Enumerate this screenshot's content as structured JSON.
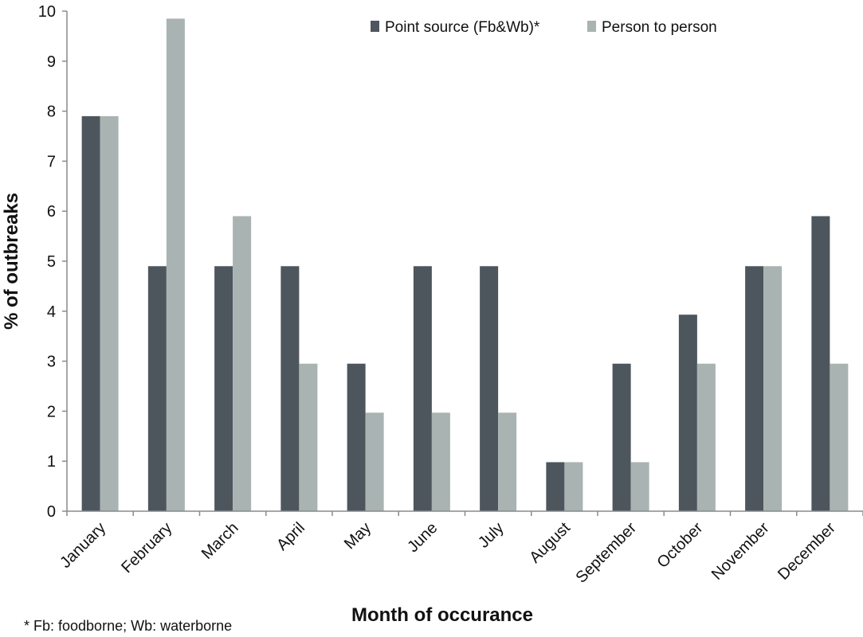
{
  "chart_data": {
    "type": "bar",
    "title": "",
    "xlabel": "Month of occurance",
    "ylabel": "% of outbreaks",
    "ylim": [
      0,
      10
    ],
    "yticks": [
      "0",
      "1",
      "2",
      "3",
      "4",
      "5",
      "6",
      "7",
      "8",
      "9",
      "10"
    ],
    "grid": false,
    "legend_position": "top-right",
    "categories": [
      "January",
      "February",
      "March",
      "April",
      "May",
      "June",
      "July",
      "August",
      "September",
      "October",
      "November",
      "December"
    ],
    "series": [
      {
        "name": "Point source (Fb&Wb)*",
        "color": "#4d565d",
        "values": [
          7.9,
          4.9,
          4.9,
          4.9,
          2.95,
          4.9,
          4.9,
          0.98,
          2.95,
          3.93,
          4.9,
          5.9
        ]
      },
      {
        "name": "Person to person",
        "color": "#a8b3b2",
        "values": [
          7.9,
          9.85,
          5.9,
          2.95,
          1.97,
          1.97,
          1.97,
          0.98,
          0.98,
          2.95,
          4.9,
          2.95
        ]
      }
    ],
    "footnote": "* Fb: foodborne; Wb: waterborne"
  }
}
